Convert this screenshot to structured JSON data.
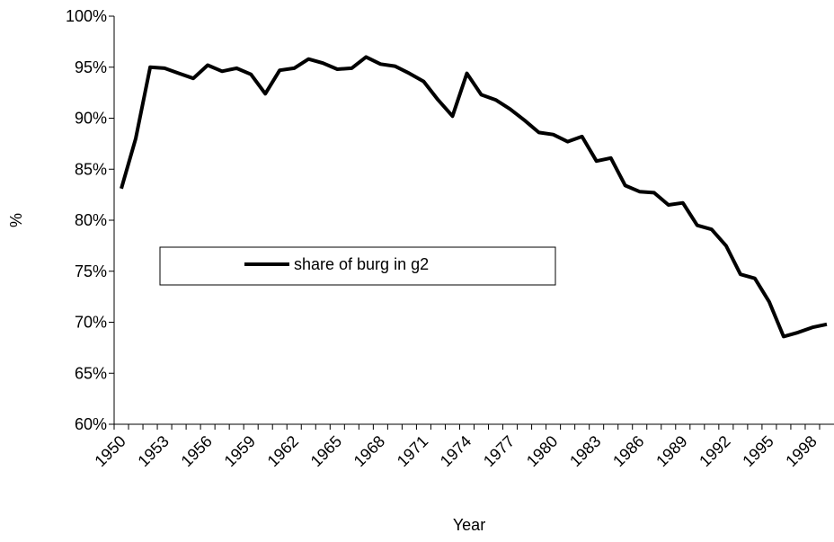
{
  "chart_data": {
    "type": "line",
    "x_label": "Year",
    "y_label": "%",
    "categories": [
      "1950",
      null,
      null,
      "1953",
      null,
      null,
      "1956",
      null,
      null,
      "1959",
      null,
      null,
      "1962",
      null,
      null,
      "1965",
      null,
      null,
      "1968",
      null,
      null,
      "1971",
      null,
      null,
      "1974",
      null,
      null,
      "1977",
      null,
      null,
      "1980",
      null,
      null,
      "1983",
      null,
      null,
      "1986",
      null,
      null,
      "1989",
      null,
      null,
      "1992",
      null,
      null,
      "1995",
      null,
      null,
      "1998",
      null
    ],
    "series": [
      {
        "name": "share of burg in g2",
        "color": "#000000",
        "values": [
          83.1,
          88.0,
          95.0,
          94.9,
          94.4,
          93.9,
          95.2,
          94.6,
          94.9,
          94.3,
          92.4,
          94.7,
          94.9,
          95.8,
          95.4,
          94.8,
          94.9,
          96.0,
          95.3,
          95.1,
          94.4,
          93.6,
          91.8,
          90.2,
          94.4,
          92.3,
          91.8,
          90.9,
          89.8,
          88.6,
          88.4,
          87.7,
          88.2,
          85.8,
          86.1,
          83.4,
          82.8,
          82.7,
          81.5,
          81.7,
          79.5,
          79.1,
          77.5,
          74.7,
          74.3,
          72.0,
          68.6,
          69.0,
          69.5,
          69.8
        ]
      }
    ],
    "ylim": [
      60,
      100
    ],
    "yticks": [
      {
        "value": 60,
        "label": "60%"
      },
      {
        "value": 65,
        "label": "65%"
      },
      {
        "value": 70,
        "label": "70%"
      },
      {
        "value": 75,
        "label": "75%"
      },
      {
        "value": 80,
        "label": "80%"
      },
      {
        "value": 85,
        "label": "85%"
      },
      {
        "value": 90,
        "label": "90%"
      },
      {
        "value": 95,
        "label": "95%"
      },
      {
        "value": 100,
        "label": "100%"
      }
    ],
    "grid": false
  }
}
